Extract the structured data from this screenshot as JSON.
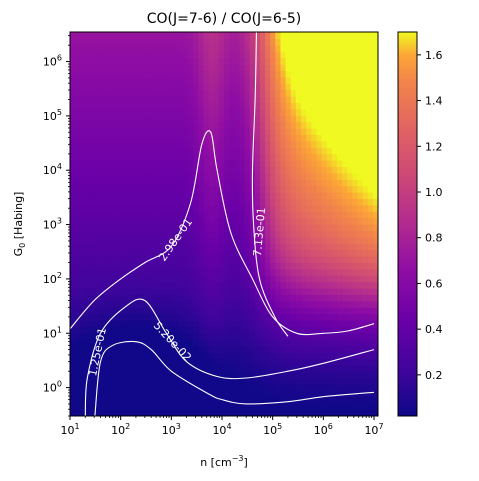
{
  "chart_data": {
    "type": "heatmap",
    "title": "CO(J=7-6) / CO(J=6-5)",
    "xlabel": {
      "main": "n [cm",
      "sup": "−3",
      "tail": "]"
    },
    "ylabel": {
      "main": "G",
      "sub": "0",
      "tail": " [Habing]"
    },
    "x_scale": "log",
    "y_scale": "log",
    "xlim": [
      10,
      12000000
    ],
    "ylim": [
      0.3,
      3500000
    ],
    "x_ticks": [
      {
        "value": 10,
        "base": "10",
        "exp": "1"
      },
      {
        "value": 100,
        "base": "10",
        "exp": "2"
      },
      {
        "value": 1000,
        "base": "10",
        "exp": "3"
      },
      {
        "value": 10000,
        "base": "10",
        "exp": "4"
      },
      {
        "value": 100000,
        "base": "10",
        "exp": "5"
      },
      {
        "value": 1000000,
        "base": "10",
        "exp": "6"
      },
      {
        "value": 10000000,
        "base": "10",
        "exp": "7"
      }
    ],
    "y_ticks": [
      {
        "value": 1,
        "base": "10",
        "exp": "0"
      },
      {
        "value": 10,
        "base": "10",
        "exp": "1"
      },
      {
        "value": 100,
        "base": "10",
        "exp": "2"
      },
      {
        "value": 1000,
        "base": "10",
        "exp": "3"
      },
      {
        "value": 10000,
        "base": "10",
        "exp": "4"
      },
      {
        "value": 100000,
        "base": "10",
        "exp": "5"
      },
      {
        "value": 1000000,
        "base": "10",
        "exp": "6"
      }
    ],
    "colormap": "plasma",
    "colorbar": {
      "range": [
        0.02,
        1.7
      ],
      "ticks": [
        "0.2",
        "0.4",
        "0.6",
        "0.8",
        "1.0",
        "1.2",
        "1.4",
        "1.6"
      ]
    },
    "contours": [
      {
        "label": "5.20e-02",
        "points": [
          [
            31,
            0.3
          ],
          [
            40,
            3
          ],
          [
            70,
            6
          ],
          [
            200,
            7
          ],
          [
            400,
            5
          ],
          [
            1000,
            2
          ],
          [
            5000,
            0.8
          ],
          [
            10000,
            0.6
          ],
          [
            30000,
            0.5
          ],
          [
            200000,
            0.55
          ],
          [
            1000000,
            0.68
          ],
          [
            10000000,
            0.82
          ]
        ]
      },
      {
        "label": "1.25e-01",
        "points": [
          [
            20,
            0.3
          ],
          [
            22,
            1.5
          ],
          [
            40,
            10
          ],
          [
            120,
            30
          ],
          [
            300,
            40
          ],
          [
            800,
            10
          ],
          [
            2000,
            3
          ],
          [
            8000,
            1.6
          ],
          [
            30000,
            1.5
          ],
          [
            200000,
            2
          ],
          [
            1000000,
            2.8
          ],
          [
            10000000,
            5
          ]
        ]
      },
      {
        "label": "2.98e-01",
        "points": [
          [
            10,
            12
          ],
          [
            30,
            40
          ],
          [
            100,
            100
          ],
          [
            300,
            200
          ],
          [
            1000,
            400
          ],
          [
            2400,
            2500
          ],
          [
            4000,
            30000
          ],
          [
            6000,
            50000
          ],
          [
            8000,
            10000
          ],
          [
            15000,
            700
          ],
          [
            40000,
            100
          ],
          [
            100000,
            20
          ],
          [
            300000,
            10
          ],
          [
            1000000,
            10
          ],
          [
            3000000,
            11
          ],
          [
            10000000,
            15
          ]
        ]
      },
      {
        "label": "7.13e-01",
        "points": [
          [
            48000,
            3500000
          ],
          [
            45000,
            200000
          ],
          [
            40000,
            10000
          ],
          [
            42000,
            1000
          ],
          [
            55000,
            100
          ],
          [
            110000,
            20
          ],
          [
            200000,
            8.8
          ]
        ]
      }
    ],
    "grid": false
  }
}
